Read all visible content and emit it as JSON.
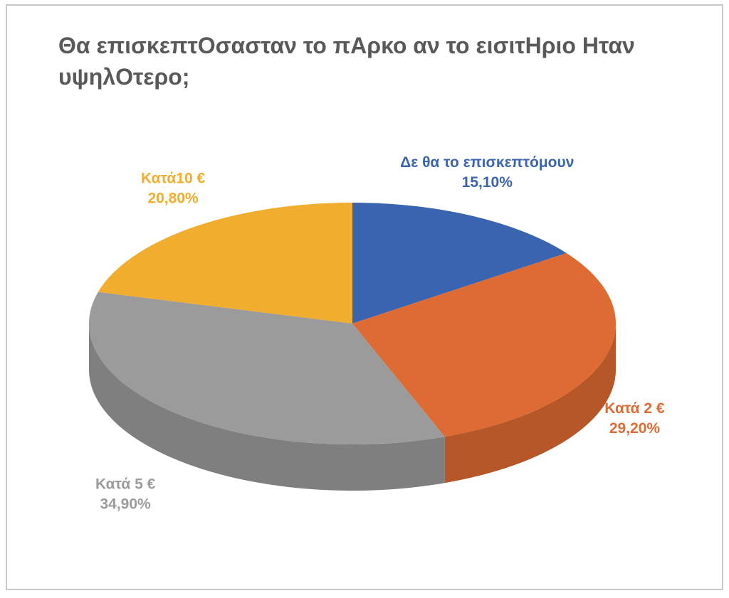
{
  "chart_data": {
    "type": "pie3d",
    "title": "Θα επισκεπτOσασταν το πΑρκο αν το εισιτΗριο Ηταν υψηλOτερο;",
    "categories": [
      "Δε θα το επισκεπτόμουν",
      "Κατά 2 €",
      "Κατά 5 €",
      "Κατά10 €"
    ],
    "values": [
      15.1,
      29.2,
      34.9,
      20.8
    ],
    "value_labels": [
      "15,10%",
      "29,20%",
      "34,90%",
      "20,80%"
    ],
    "colors": [
      "#3a63b0",
      "#dd6b33",
      "#9b9b9b",
      "#f0ad2e"
    ]
  }
}
